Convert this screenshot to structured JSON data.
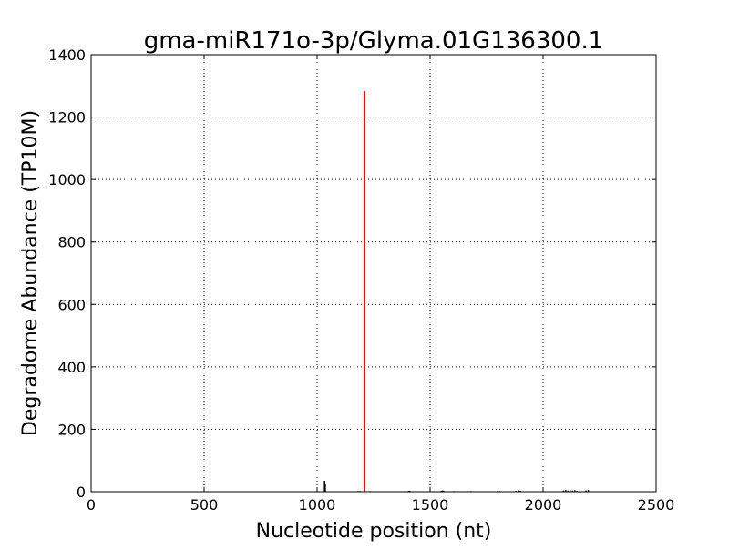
{
  "chart_data": {
    "type": "bar",
    "title": "gma-miR171o-3p/Glyma.01G136300.1",
    "xlabel": "Nucleotide position (nt)",
    "ylabel": "Degradome Abundance (TP10M)",
    "xlim": [
      0,
      2500
    ],
    "ylim": [
      0,
      1400
    ],
    "xticks": [
      0,
      500,
      1000,
      1500,
      2000,
      2500
    ],
    "yticks": [
      0,
      200,
      400,
      600,
      800,
      1000,
      1200,
      1400
    ],
    "grid": true,
    "series": [
      {
        "color": "#000000",
        "points": [
          [
            1033,
            35
          ],
          [
            1036,
            25
          ],
          [
            1180,
            2
          ],
          [
            1185,
            2
          ],
          [
            1190,
            2
          ],
          [
            1235,
            2
          ],
          [
            1405,
            3
          ],
          [
            1410,
            3
          ],
          [
            1550,
            3
          ],
          [
            1555,
            4
          ],
          [
            1560,
            3
          ],
          [
            1605,
            2
          ],
          [
            1680,
            2
          ],
          [
            1800,
            3
          ],
          [
            1810,
            2
          ],
          [
            1880,
            3
          ],
          [
            1890,
            4
          ],
          [
            1900,
            3
          ],
          [
            2090,
            4
          ],
          [
            2100,
            5
          ],
          [
            2110,
            4
          ],
          [
            2120,
            5
          ],
          [
            2130,
            4
          ],
          [
            2140,
            5
          ],
          [
            2150,
            3
          ],
          [
            2190,
            4
          ],
          [
            2200,
            5
          ]
        ]
      },
      {
        "color": "#ff0000",
        "points": [
          [
            1210,
            1283
          ]
        ]
      }
    ]
  }
}
